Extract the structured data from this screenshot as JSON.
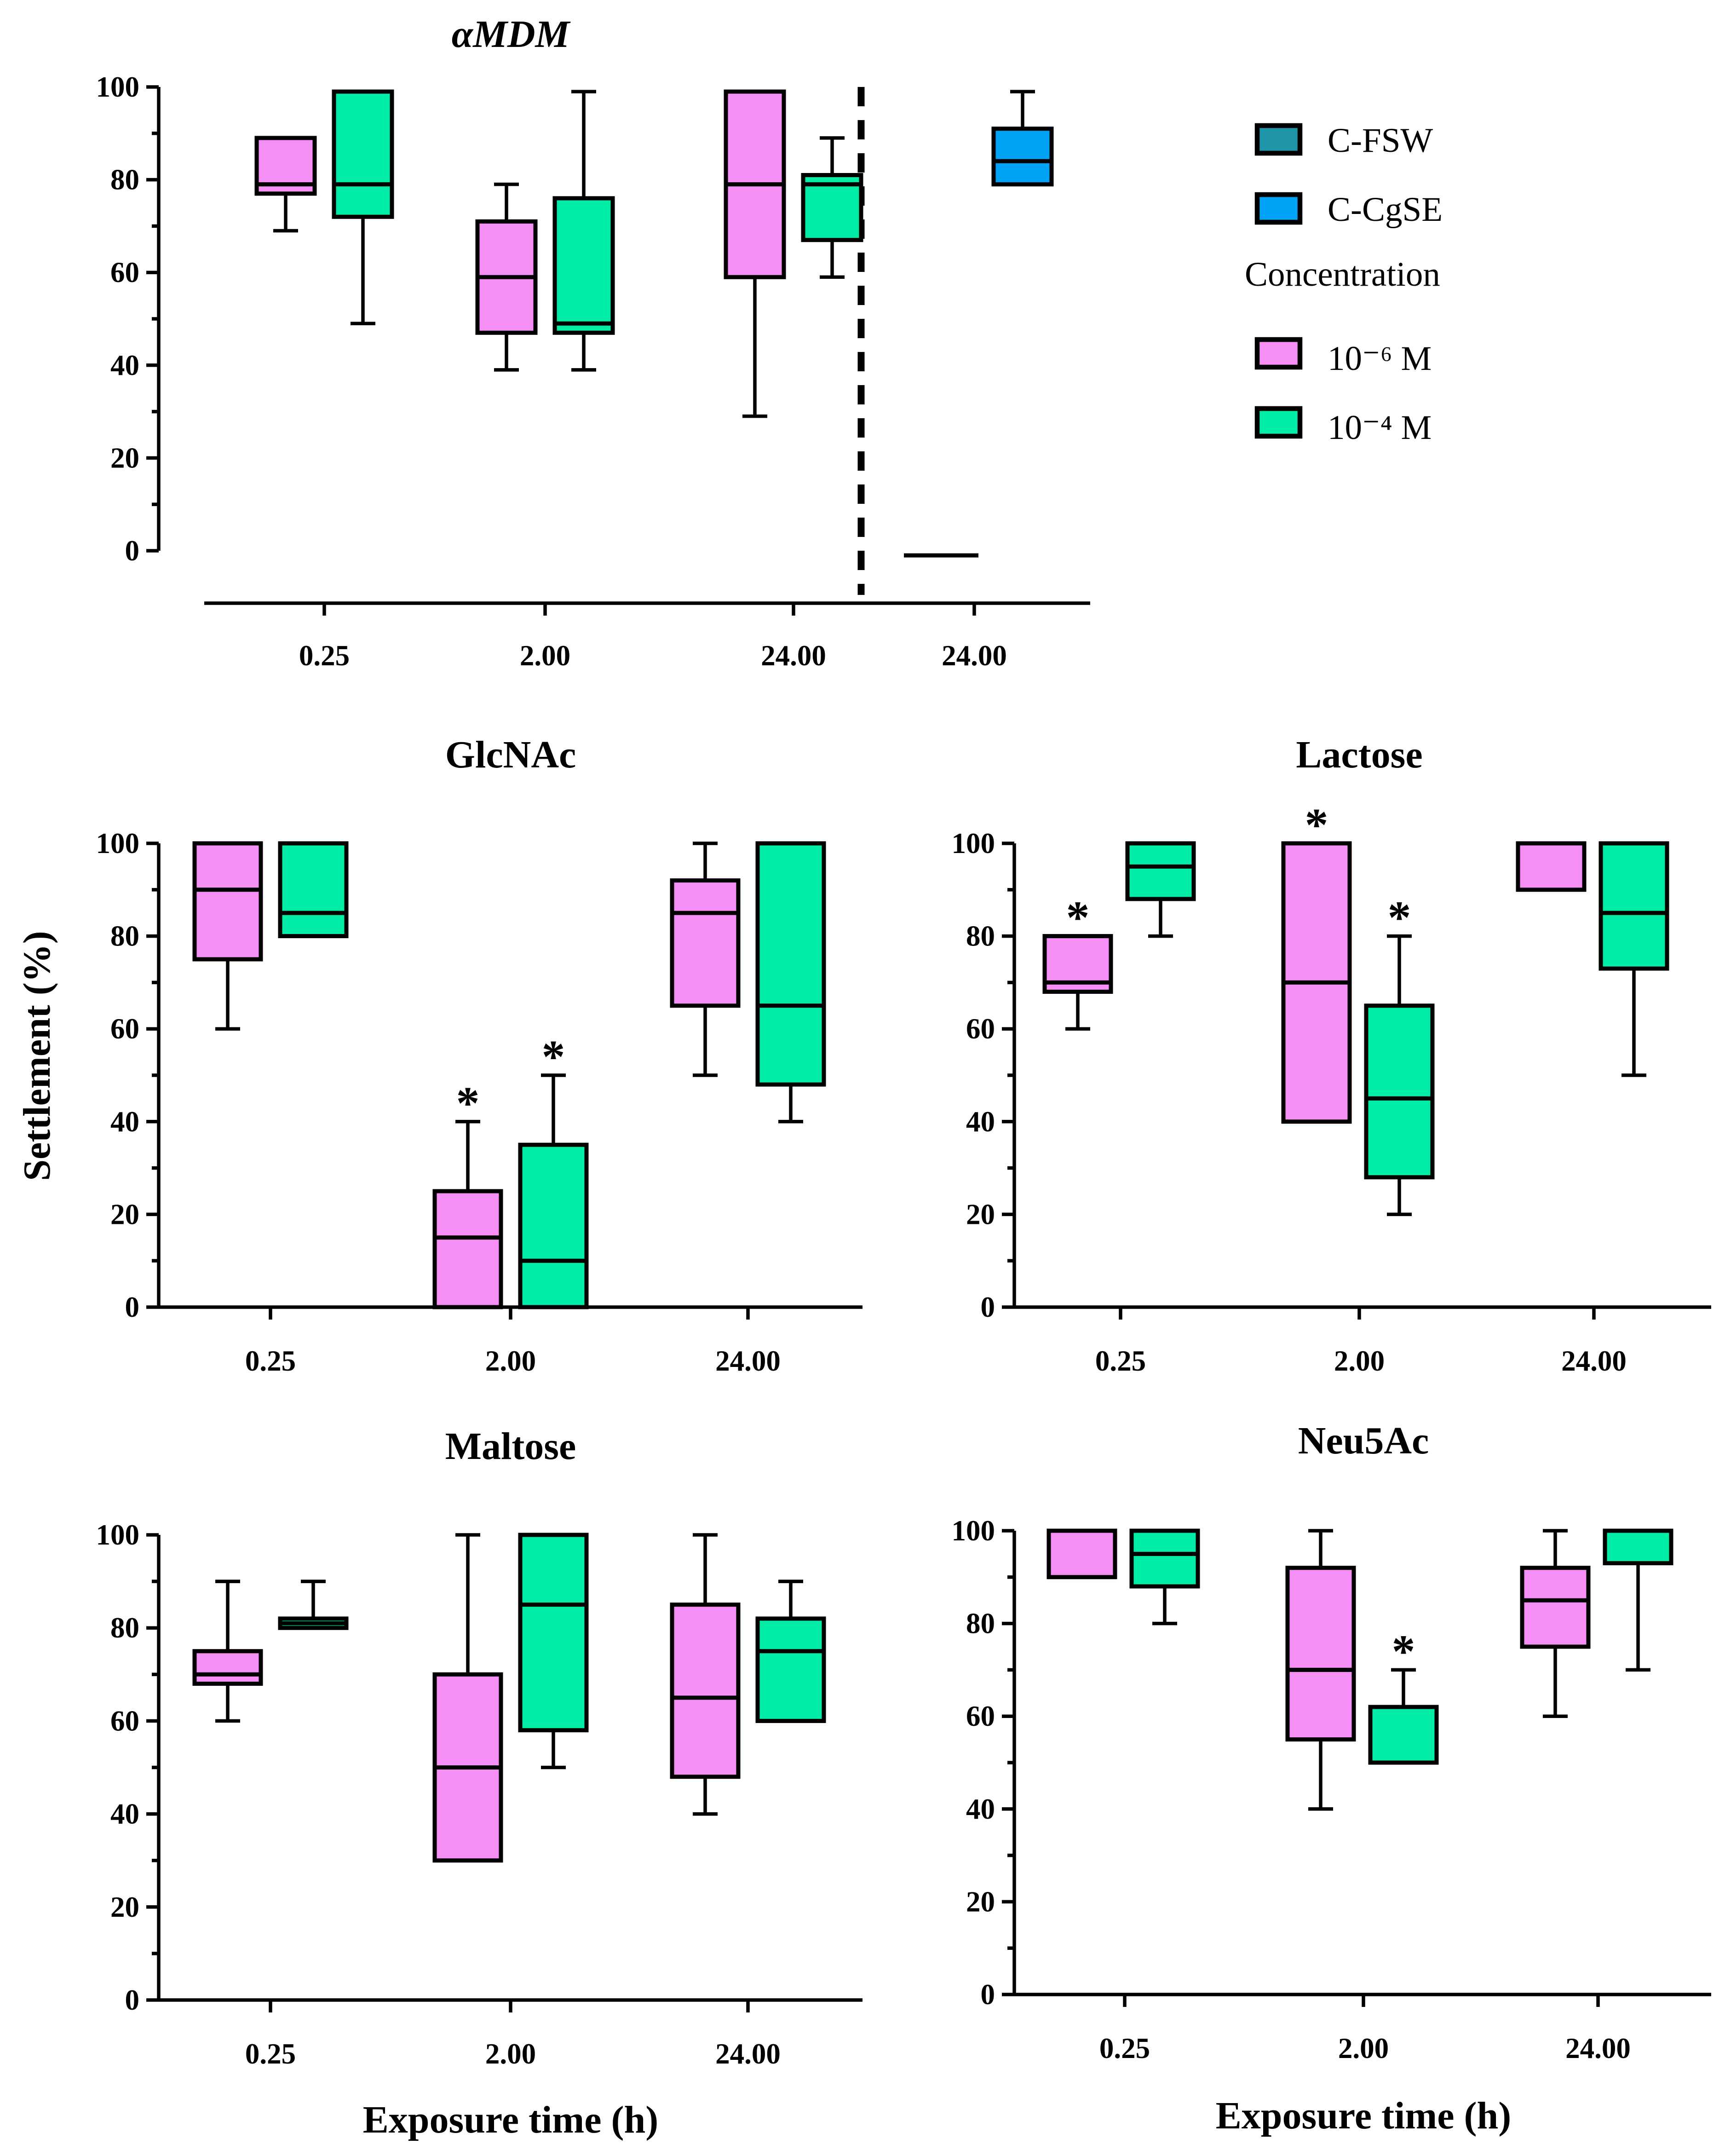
{
  "chart_data": [
    {
      "type": "box",
      "title": "αMDM",
      "ylim": [
        0,
        100
      ],
      "yticks": [
        "0",
        "20",
        "40",
        "60",
        "80",
        "100"
      ],
      "categories": [
        "0.25",
        "2.00",
        "24.00",
        "24.00"
      ],
      "groups": [
        {
          "category": "0.25",
          "boxes": [
            {
              "series": "10⁻⁶ M",
              "min": 69,
              "q1": 77,
              "median": 79,
              "q3": 89,
              "max": 89
            },
            {
              "series": "10⁻⁴ M",
              "min": 49,
              "q1": 72,
              "median": 79,
              "q3": 99,
              "max": 99
            }
          ]
        },
        {
          "category": "2.00",
          "boxes": [
            {
              "series": "10⁻⁶ M",
              "min": 39,
              "q1": 47,
              "median": 59,
              "q3": 71,
              "max": 79
            },
            {
              "series": "10⁻⁴ M",
              "min": 39,
              "q1": 47,
              "median": 49,
              "q3": 76,
              "max": 99
            }
          ]
        },
        {
          "category": "24.00",
          "boxes": [
            {
              "series": "10⁻⁶ M",
              "min": 29,
              "q1": 59,
              "median": 79,
              "q3": 99,
              "max": 99
            },
            {
              "series": "10⁻⁴ M",
              "min": 59,
              "q1": 67,
              "median": 79,
              "q3": 81,
              "max": 89
            }
          ]
        },
        {
          "category": "24.00",
          "boxes": [
            {
              "series": "C-FSW",
              "min": -1,
              "q1": -1,
              "median": -1,
              "q3": -1,
              "max": -1
            },
            {
              "series": "C-CgSE",
              "min": 79,
              "q1": 79,
              "median": 84,
              "q3": 91,
              "max": 99
            }
          ]
        }
      ]
    },
    {
      "type": "box",
      "title": "GlcNAc",
      "ylabel": "Settlement (%)",
      "ylim": [
        0,
        100
      ],
      "yticks": [
        "0",
        "20",
        "40",
        "60",
        "80",
        "100"
      ],
      "categories": [
        "0.25",
        "2.00",
        "24.00"
      ],
      "groups": [
        {
          "category": "0.25",
          "boxes": [
            {
              "series": "10⁻⁶ M",
              "min": 60,
              "q1": 75,
              "median": 90,
              "q3": 100,
              "max": 100
            },
            {
              "series": "10⁻⁴ M",
              "min": 80,
              "q1": 80,
              "median": 85,
              "q3": 100,
              "max": 100
            }
          ]
        },
        {
          "category": "2.00",
          "boxes": [
            {
              "series": "10⁻⁶ M",
              "min": 0,
              "q1": 0,
              "median": 15,
              "q3": 25,
              "max": 40,
              "annotation": "*"
            },
            {
              "series": "10⁻⁴ M",
              "min": 0,
              "q1": 0,
              "median": 10,
              "q3": 35,
              "max": 50,
              "annotation": "*"
            }
          ]
        },
        {
          "category": "24.00",
          "boxes": [
            {
              "series": "10⁻⁶ M",
              "min": 50,
              "q1": 65,
              "median": 85,
              "q3": 92,
              "max": 100
            },
            {
              "series": "10⁻⁴ M",
              "min": 40,
              "q1": 48,
              "median": 65,
              "q3": 100,
              "max": 100
            }
          ]
        }
      ]
    },
    {
      "type": "box",
      "title": "Lactose",
      "ylim": [
        0,
        100
      ],
      "yticks": [
        "0",
        "20",
        "40",
        "60",
        "80",
        "100"
      ],
      "categories": [
        "0.25",
        "2.00",
        "24.00"
      ],
      "groups": [
        {
          "category": "0.25",
          "boxes": [
            {
              "series": "10⁻⁶ M",
              "min": 60,
              "q1": 68,
              "median": 70,
              "q3": 80,
              "max": 80,
              "annotation": "*"
            },
            {
              "series": "10⁻⁴ M",
              "min": 80,
              "q1": 88,
              "median": 95,
              "q3": 100,
              "max": 100
            }
          ]
        },
        {
          "category": "2.00",
          "boxes": [
            {
              "series": "10⁻⁶ M",
              "min": 40,
              "q1": 40,
              "median": 70,
              "q3": 100,
              "max": 100,
              "annotation": "*"
            },
            {
              "series": "10⁻⁴ M",
              "min": 20,
              "q1": 28,
              "median": 45,
              "q3": 65,
              "max": 80,
              "annotation": "*"
            }
          ]
        },
        {
          "category": "24.00",
          "boxes": [
            {
              "series": "10⁻⁶ M",
              "min": 90,
              "q1": 90,
              "median": 100,
              "q3": 100,
              "max": 100
            },
            {
              "series": "10⁻⁴ M",
              "min": 50,
              "q1": 73,
              "median": 85,
              "q3": 100,
              "max": 100
            }
          ]
        }
      ]
    },
    {
      "type": "box",
      "title": "Maltose",
      "xlabel": "Exposure time (h)",
      "ylim": [
        0,
        100
      ],
      "yticks": [
        "0",
        "20",
        "40",
        "60",
        "80",
        "100"
      ],
      "categories": [
        "0.25",
        "2.00",
        "24.00"
      ],
      "groups": [
        {
          "category": "0.25",
          "boxes": [
            {
              "series": "10⁻⁶ M",
              "min": 60,
              "q1": 68,
              "median": 70,
              "q3": 75,
              "max": 90
            },
            {
              "series": "10⁻⁴ M",
              "min": 80,
              "q1": 80,
              "median": 81,
              "q3": 82,
              "max": 90
            }
          ]
        },
        {
          "category": "2.00",
          "boxes": [
            {
              "series": "10⁻⁶ M",
              "min": 30,
              "q1": 30,
              "median": 50,
              "q3": 70,
              "max": 100
            },
            {
              "series": "10⁻⁴ M",
              "min": 50,
              "q1": 58,
              "median": 85,
              "q3": 100,
              "max": 100
            }
          ]
        },
        {
          "category": "24.00",
          "boxes": [
            {
              "series": "10⁻⁶ M",
              "min": 40,
              "q1": 48,
              "median": 65,
              "q3": 85,
              "max": 100
            },
            {
              "series": "10⁻⁴ M",
              "min": 60,
              "q1": 60,
              "median": 75,
              "q3": 82,
              "max": 90
            }
          ]
        }
      ]
    },
    {
      "type": "box",
      "title": "Neu5Ac",
      "xlabel": "Exposure time (h)",
      "ylim": [
        0,
        100
      ],
      "yticks": [
        "0",
        "20",
        "40",
        "60",
        "80",
        "100"
      ],
      "categories": [
        "0.25",
        "2.00",
        "24.00"
      ],
      "groups": [
        {
          "category": "0.25",
          "boxes": [
            {
              "series": "10⁻⁶ M",
              "min": 90,
              "q1": 90,
              "median": 100,
              "q3": 100,
              "max": 100
            },
            {
              "series": "10⁻⁴ M",
              "min": 80,
              "q1": 88,
              "median": 95,
              "q3": 100,
              "max": 100
            }
          ]
        },
        {
          "category": "2.00",
          "boxes": [
            {
              "series": "10⁻⁶ M",
              "min": 40,
              "q1": 55,
              "median": 70,
              "q3": 92,
              "max": 100
            },
            {
              "series": "10⁻⁴ M",
              "min": 50,
              "q1": 50,
              "median": 50,
              "q3": 62,
              "max": 70,
              "annotation": "*"
            }
          ]
        },
        {
          "category": "24.00",
          "boxes": [
            {
              "series": "10⁻⁶ M",
              "min": 60,
              "q1": 75,
              "median": 85,
              "q3": 92,
              "max": 100
            },
            {
              "series": "10⁻⁴ M",
              "min": 70,
              "q1": 93,
              "median": 100,
              "q3": 100,
              "max": 100
            }
          ]
        }
      ]
    }
  ],
  "legend": {
    "placement": "top-right",
    "entries": [
      {
        "label": "C-FSW",
        "color": "#1f96a8"
      },
      {
        "label": "C-CgSE",
        "color": "#00a2f5"
      }
    ],
    "heading": "Concentration",
    "concentration_entries": [
      {
        "label": "10⁻⁶ M",
        "color": "#f58ff5"
      },
      {
        "label": "10⁻⁴ M",
        "color": "#00eda8"
      }
    ]
  },
  "colors": {
    "10⁻⁶ M": "#f58ff5",
    "10⁻⁴ M": "#00eda8",
    "C-FSW": "#1f96a8",
    "C-CgSE": "#00a2f5"
  }
}
